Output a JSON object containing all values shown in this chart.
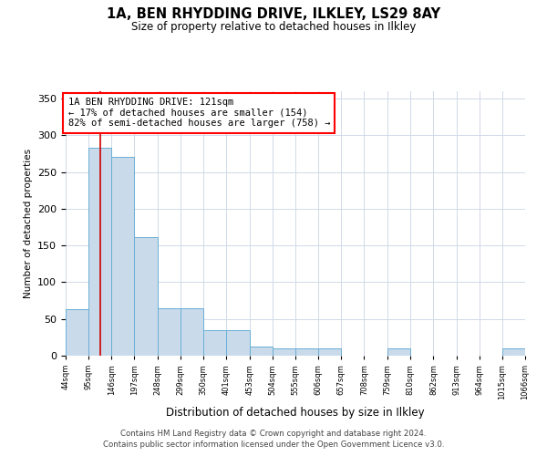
{
  "title": "1A, BEN RHYDDING DRIVE, ILKLEY, LS29 8AY",
  "subtitle": "Size of property relative to detached houses in Ilkley",
  "xlabel": "Distribution of detached houses by size in Ilkley",
  "ylabel": "Number of detached properties",
  "bin_edges": [
    44,
    95,
    146,
    197,
    248,
    299,
    350,
    401,
    453,
    504,
    555,
    606,
    657,
    708,
    759,
    810,
    862,
    913,
    964,
    1015,
    1066
  ],
  "bar_heights": [
    63,
    283,
    271,
    161,
    65,
    65,
    35,
    35,
    12,
    10,
    10,
    10,
    0,
    0,
    10,
    0,
    0,
    0,
    0,
    10
  ],
  "bar_color": "#c9daea",
  "bar_edge_color": "#6aafd6",
  "property_line_x": 121,
  "annotation_line1": "1A BEN RHYDDING DRIVE: 121sqm",
  "annotation_line2": "← 17% of detached houses are smaller (154)",
  "annotation_line3": "82% of semi-detached houses are larger (758) →",
  "vline_color": "#cc0000",
  "ylim": [
    0,
    360
  ],
  "yticks": [
    0,
    50,
    100,
    150,
    200,
    250,
    300,
    350
  ],
  "tick_labels": [
    "44sqm",
    "95sqm",
    "146sqm",
    "197sqm",
    "248sqm",
    "299sqm",
    "350sqm",
    "401sqm",
    "453sqm",
    "504sqm",
    "555sqm",
    "606sqm",
    "657sqm",
    "708sqm",
    "759sqm",
    "810sqm",
    "862sqm",
    "913sqm",
    "964sqm",
    "1015sqm",
    "1066sqm"
  ],
  "footer1": "Contains HM Land Registry data © Crown copyright and database right 2024.",
  "footer2": "Contains public sector information licensed under the Open Government Licence v3.0.",
  "bg_color": "#ffffff",
  "grid_color": "#d0dae8"
}
